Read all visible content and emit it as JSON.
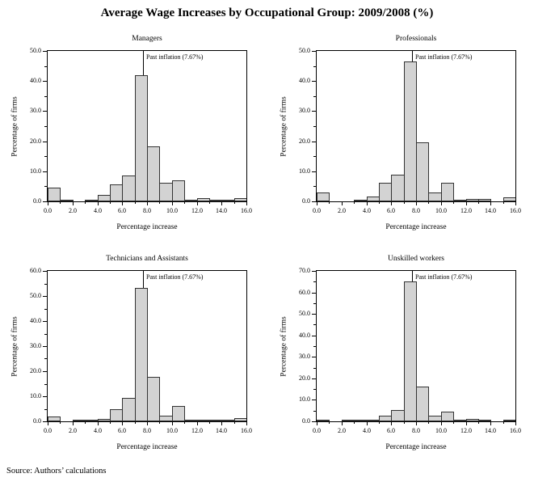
{
  "title": "Average Wage Increases by Occupational Group: 2009/2008 (%)",
  "source": "Source: Authors’ calculations",
  "annotation": {
    "label": "Past inflation (7.67%)",
    "x": 7.67
  },
  "axes": {
    "xlabel": "Percentage increase",
    "ylabel": "Percentage of firms",
    "xlim": [
      0,
      16
    ],
    "xticks": [
      0,
      2,
      4,
      6,
      8,
      10,
      12,
      14,
      16
    ],
    "x_tick_labels": [
      "0.0",
      "2.0",
      "4.0",
      "6.0",
      "8.0",
      "10.0",
      "12.0",
      "14.0",
      "16.0"
    ],
    "grid": false
  },
  "colors": {
    "bar_fill": "#d3d3d3",
    "bar_border": "#333333",
    "axis": "#000000",
    "line": "#000000"
  },
  "chart_data": [
    {
      "type": "bar",
      "title": "Managers",
      "bin_edges": [
        0,
        1,
        2,
        3,
        4,
        5,
        6,
        7,
        8,
        9,
        10,
        11,
        12,
        13,
        14,
        15,
        16
      ],
      "values": [
        4.6,
        0.3,
        0,
        0.5,
        2.1,
        5.7,
        8.5,
        41.9,
        18.2,
        6.3,
        7.0,
        0.3,
        1.2,
        0.5,
        0.2,
        1.0
      ],
      "ylim": [
        0,
        50
      ],
      "yticks": [
        0,
        10,
        20,
        30,
        40,
        50
      ],
      "inflation_line_x": 7.67
    },
    {
      "type": "bar",
      "title": "Professionals",
      "bin_edges": [
        0,
        1,
        2,
        3,
        4,
        5,
        6,
        7,
        8,
        9,
        10,
        11,
        12,
        13,
        14,
        15,
        16
      ],
      "values": [
        3.0,
        0,
        0,
        0.5,
        1.7,
        6.2,
        8.9,
        46.4,
        19.5,
        3.0,
        6.2,
        0.4,
        0.8,
        0.8,
        0,
        1.3
      ],
      "ylim": [
        0,
        50
      ],
      "yticks": [
        0,
        10,
        20,
        30,
        40,
        50
      ],
      "inflation_line_x": 7.67
    },
    {
      "type": "bar",
      "title": "Technicians and Assistants",
      "bin_edges": [
        0,
        1,
        2,
        3,
        4,
        5,
        6,
        7,
        8,
        9,
        10,
        11,
        12,
        13,
        14,
        15,
        16
      ],
      "values": [
        2.0,
        0,
        0.3,
        0.3,
        1.0,
        4.7,
        9.5,
        53.2,
        17.7,
        2.2,
        6.0,
        0.5,
        0.5,
        0.2,
        0.3,
        1.2
      ],
      "ylim": [
        0,
        60
      ],
      "yticks": [
        0,
        10,
        20,
        30,
        40,
        50,
        60
      ],
      "inflation_line_x": 7.67
    },
    {
      "type": "bar",
      "title": "Unskilled workers",
      "bin_edges": [
        0,
        1,
        2,
        3,
        4,
        5,
        6,
        7,
        8,
        9,
        10,
        11,
        12,
        13,
        14,
        15,
        16
      ],
      "values": [
        0.4,
        0,
        0.3,
        0.3,
        0.8,
        2.6,
        5.2,
        65.2,
        16.3,
        2.6,
        4.6,
        0.3,
        1.0,
        0.4,
        0,
        0.7
      ],
      "ylim": [
        0,
        70
      ],
      "yticks": [
        0,
        10,
        20,
        30,
        40,
        50,
        60,
        70
      ],
      "inflation_line_x": 7.67
    }
  ]
}
